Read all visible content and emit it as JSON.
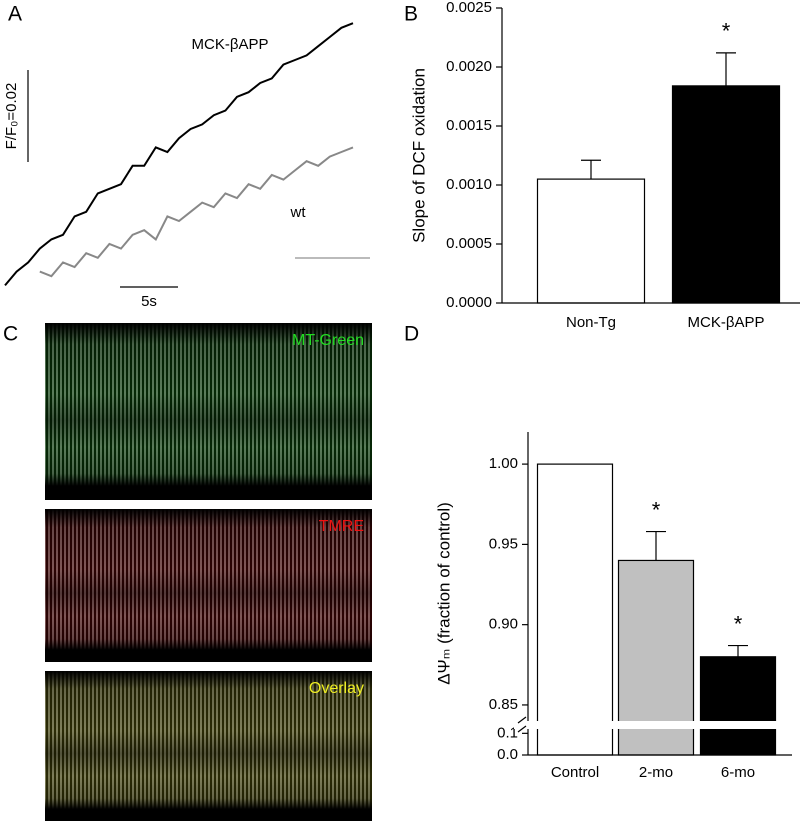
{
  "chart_data": [
    {
      "type": "line",
      "panel_label": "A",
      "x": [
        0,
        1,
        2,
        3,
        4,
        5,
        6,
        7,
        8,
        9,
        10,
        11,
        12,
        13,
        14,
        15,
        16,
        17,
        18,
        19,
        20,
        21,
        22,
        23,
        24,
        25,
        26,
        27,
        28,
        29,
        30
      ],
      "series": [
        {
          "name": "MCK-βAPP",
          "color": "#000000",
          "values": [
            0.001,
            0.004,
            0.006,
            0.009,
            0.011,
            0.012,
            0.016,
            0.017,
            0.021,
            0.022,
            0.023,
            0.027,
            0.027,
            0.031,
            0.03,
            0.033,
            0.035,
            0.036,
            0.038,
            0.039,
            0.042,
            0.043,
            0.045,
            0.046,
            0.049,
            0.05,
            0.051,
            0.053,
            0.055,
            0.057,
            0.058
          ]
        },
        {
          "name": "wt",
          "color": "#888888",
          "values": [
            null,
            null,
            null,
            0.004,
            0.003,
            0.006,
            0.005,
            0.008,
            0.007,
            0.01,
            0.009,
            0.012,
            0.013,
            0.011,
            0.016,
            0.015,
            0.017,
            0.019,
            0.018,
            0.021,
            0.02,
            0.023,
            0.022,
            0.025,
            0.024,
            0.026,
            0.028,
            0.027,
            0.029,
            0.03,
            0.031
          ]
        }
      ],
      "xlim": [
        0,
        30
      ],
      "ylim": [
        0,
        0.06
      ],
      "scale_bars": [
        {
          "value": 5,
          "label": "5s"
        },
        {
          "value": 0.02,
          "label": "F/F₀=0.02"
        }
      ]
    },
    {
      "type": "bar",
      "panel_label": "B",
      "ylabel": "Slope of DCF oxidation",
      "categories": [
        "Non-Tg",
        "MCK-βAPP"
      ],
      "values": [
        0.00105,
        0.00184
      ],
      "errors": [
        0.00016,
        0.00028
      ],
      "colors": [
        "#ffffff",
        "#000000"
      ],
      "significance": [
        null,
        "*"
      ],
      "ylim": [
        0,
        0.0025
      ],
      "yticks": [
        {
          "value": 0,
          "label": "0.0000"
        },
        {
          "value": 0.0005,
          "label": "0.0005"
        },
        {
          "value": 0.001,
          "label": "0.0010"
        },
        {
          "value": 0.0015,
          "label": "0.0015"
        },
        {
          "value": 0.002,
          "label": "0.0020"
        },
        {
          "value": 0.0025,
          "label": "0.0025"
        }
      ]
    },
    {
      "type": "bar",
      "panel_label": "D",
      "ylabel": "ΔΨₘ (fraction of control)",
      "categories": [
        "Control",
        "2-mo",
        "6-mo"
      ],
      "values": [
        1.0,
        0.94,
        0.88
      ],
      "errors": [
        null,
        0.018,
        0.007
      ],
      "colors": [
        "#ffffff",
        "#c0c0c0",
        "#000000"
      ],
      "significance": [
        null,
        "*",
        "*"
      ],
      "ylim": [
        0.84,
        1.02
      ],
      "yticks": [
        {
          "value": 0.85,
          "label": "0.85"
        },
        {
          "value": 0.9,
          "label": "0.90"
        },
        0.95,
        {
          "value": 1.0,
          "label": "1.00"
        }
      ],
      "ylim_low": [
        0,
        0.12
      ],
      "yticks_low": [
        {
          "value": 0,
          "label": "0.0"
        },
        0.1
      ]
    }
  ],
  "image_panel": {
    "panel_label": "C",
    "images": [
      {
        "label": "MT-Green",
        "color": "#22dd22"
      },
      {
        "label": "TMRE",
        "color": "#ee1111"
      },
      {
        "label": "Overlay",
        "color": "#eeee22"
      }
    ]
  }
}
